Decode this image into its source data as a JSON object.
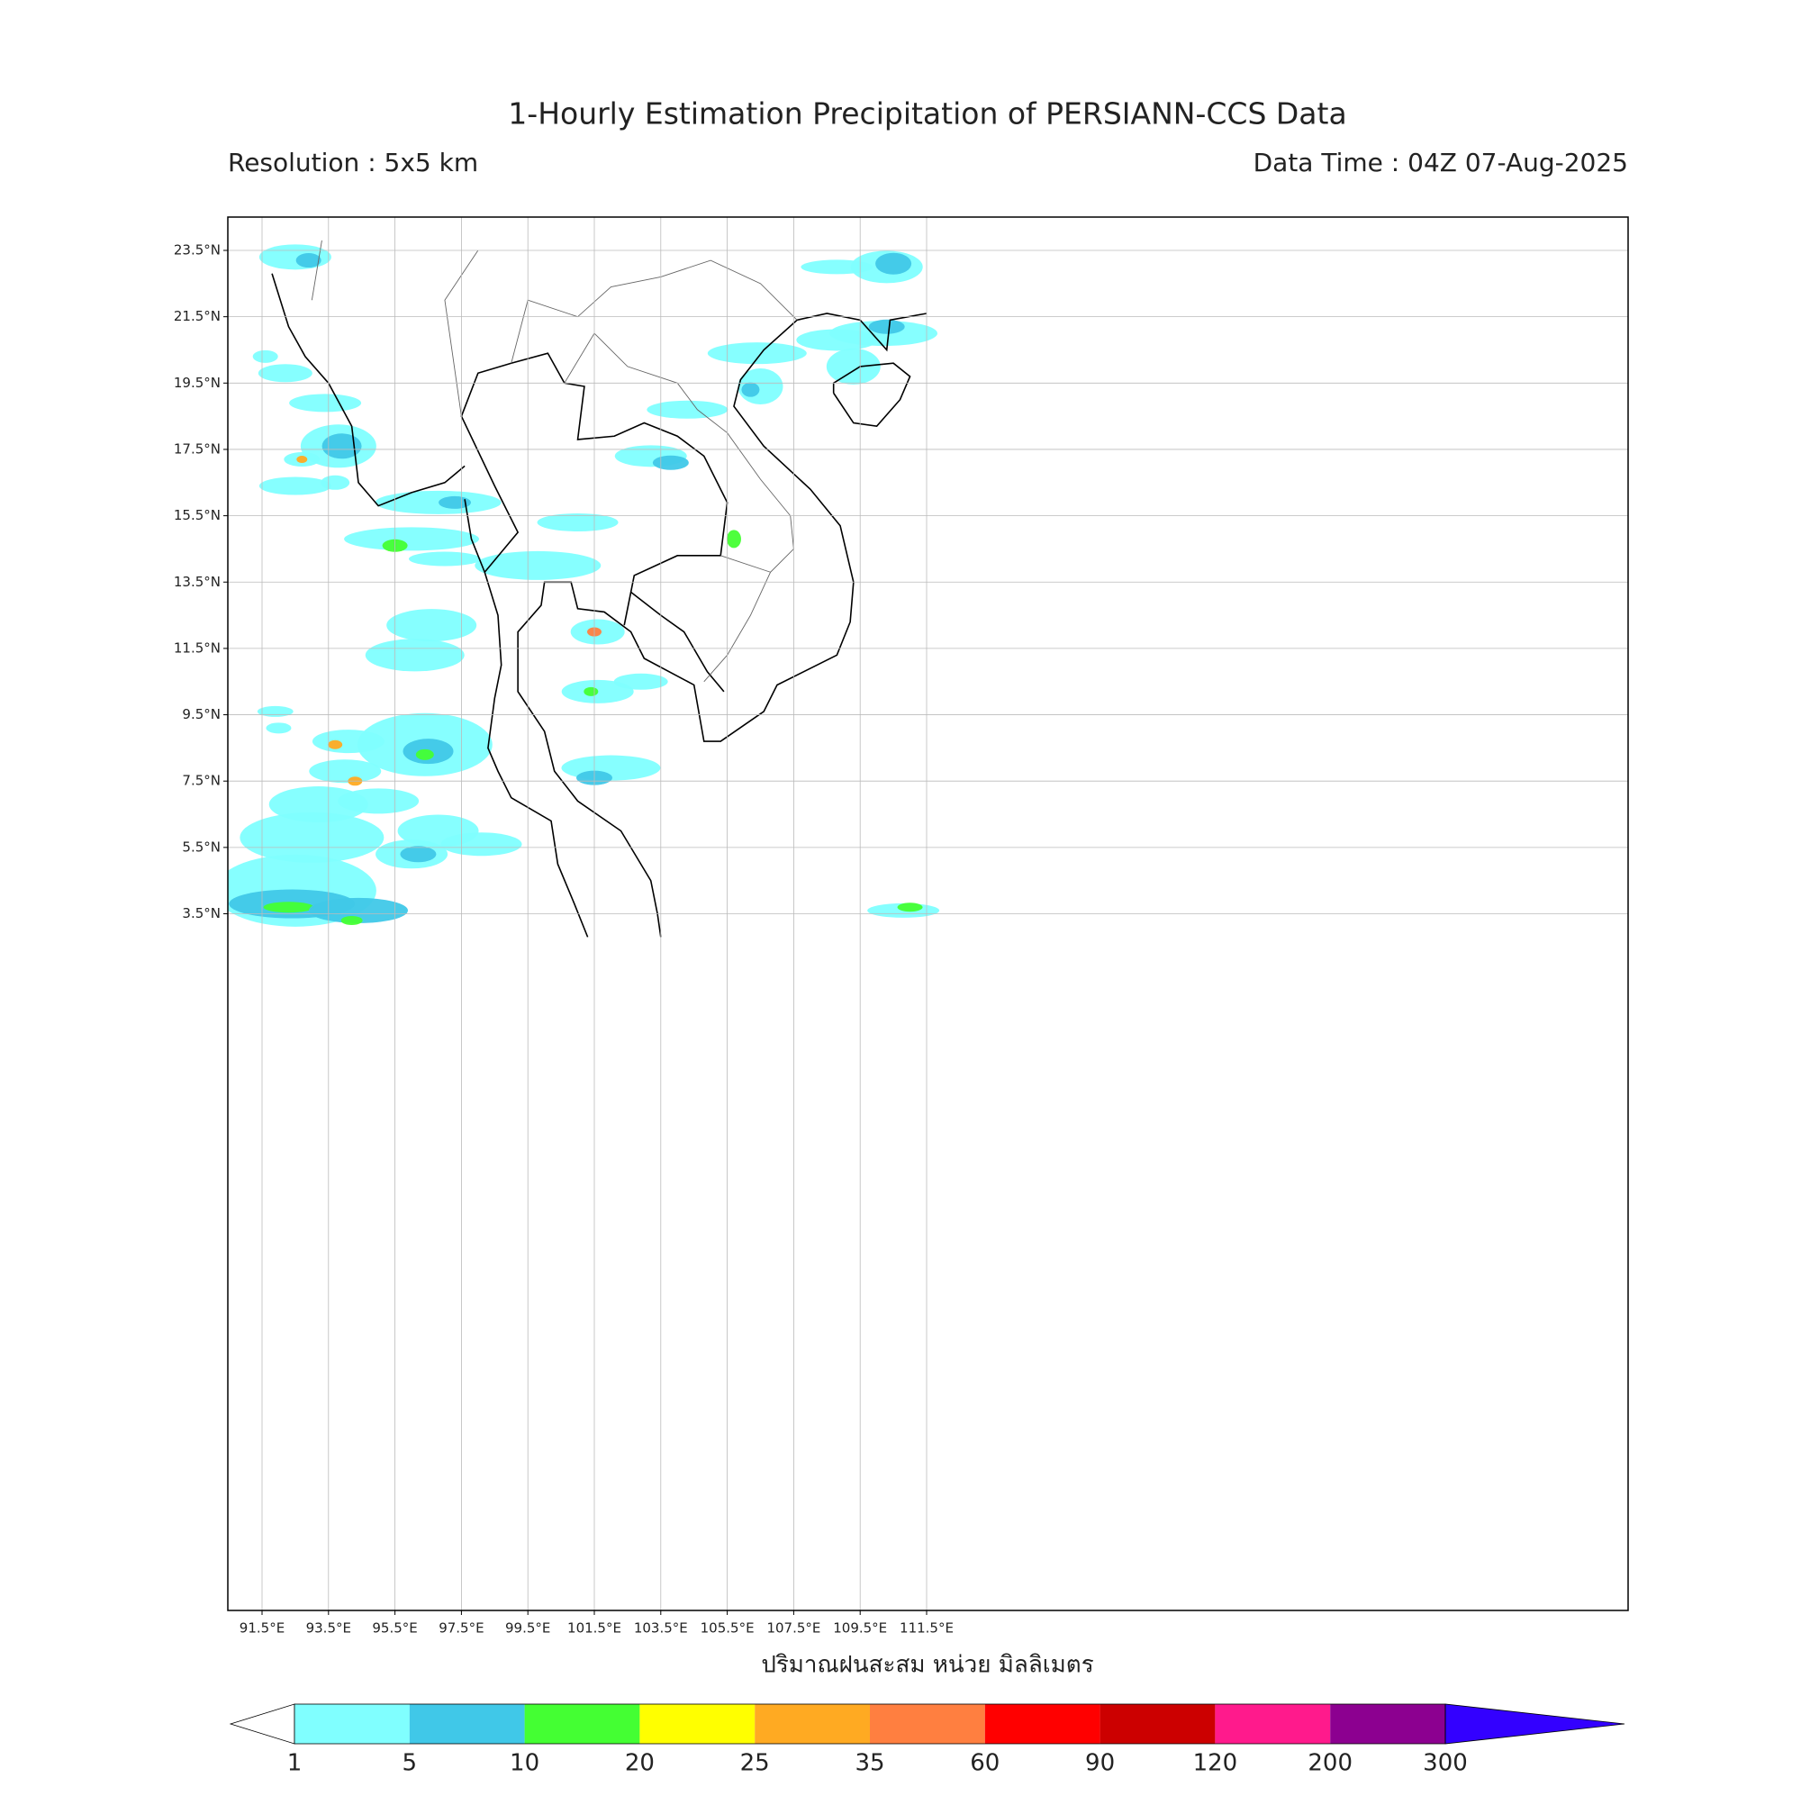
{
  "header": {
    "title": "1-Hourly Estimation Precipitation of PERSIANN-CCS Data",
    "resolution": "Resolution : 5x5 km",
    "data_time": "Data Time : 04Z 07-Aug-2025"
  },
  "map": {
    "lat_ticks": [
      "23.5°N",
      "21.5°N",
      "19.5°N",
      "17.5°N",
      "15.5°N",
      "13.5°N",
      "11.5°N",
      "9.5°N",
      "7.5°N",
      "5.5°N",
      "3.5°N"
    ],
    "lon_ticks": [
      "91.5°E",
      "93.5°E",
      "95.5°E",
      "97.5°E",
      "99.5°E",
      "101.5°E",
      "103.5°E",
      "105.5°E",
      "107.5°E",
      "109.5°E",
      "111.5°E"
    ],
    "xlabel": "ปริมาณฝนสะสม หน่วย มิลลิเมตร"
  },
  "colorbar": {
    "levels": [
      1,
      5,
      10,
      20,
      25,
      35,
      60,
      90,
      120,
      200,
      300
    ],
    "colors": [
      "#80ffff",
      "#40c8e8",
      "#44ff33",
      "#ffff00",
      "#ffaa22",
      "#ff7f40",
      "#ff0000",
      "#cc0000",
      "#ff1a8c",
      "#8c0090"
    ],
    "under_color": "#ffffff",
    "over_color": "#3300ff"
  }
}
